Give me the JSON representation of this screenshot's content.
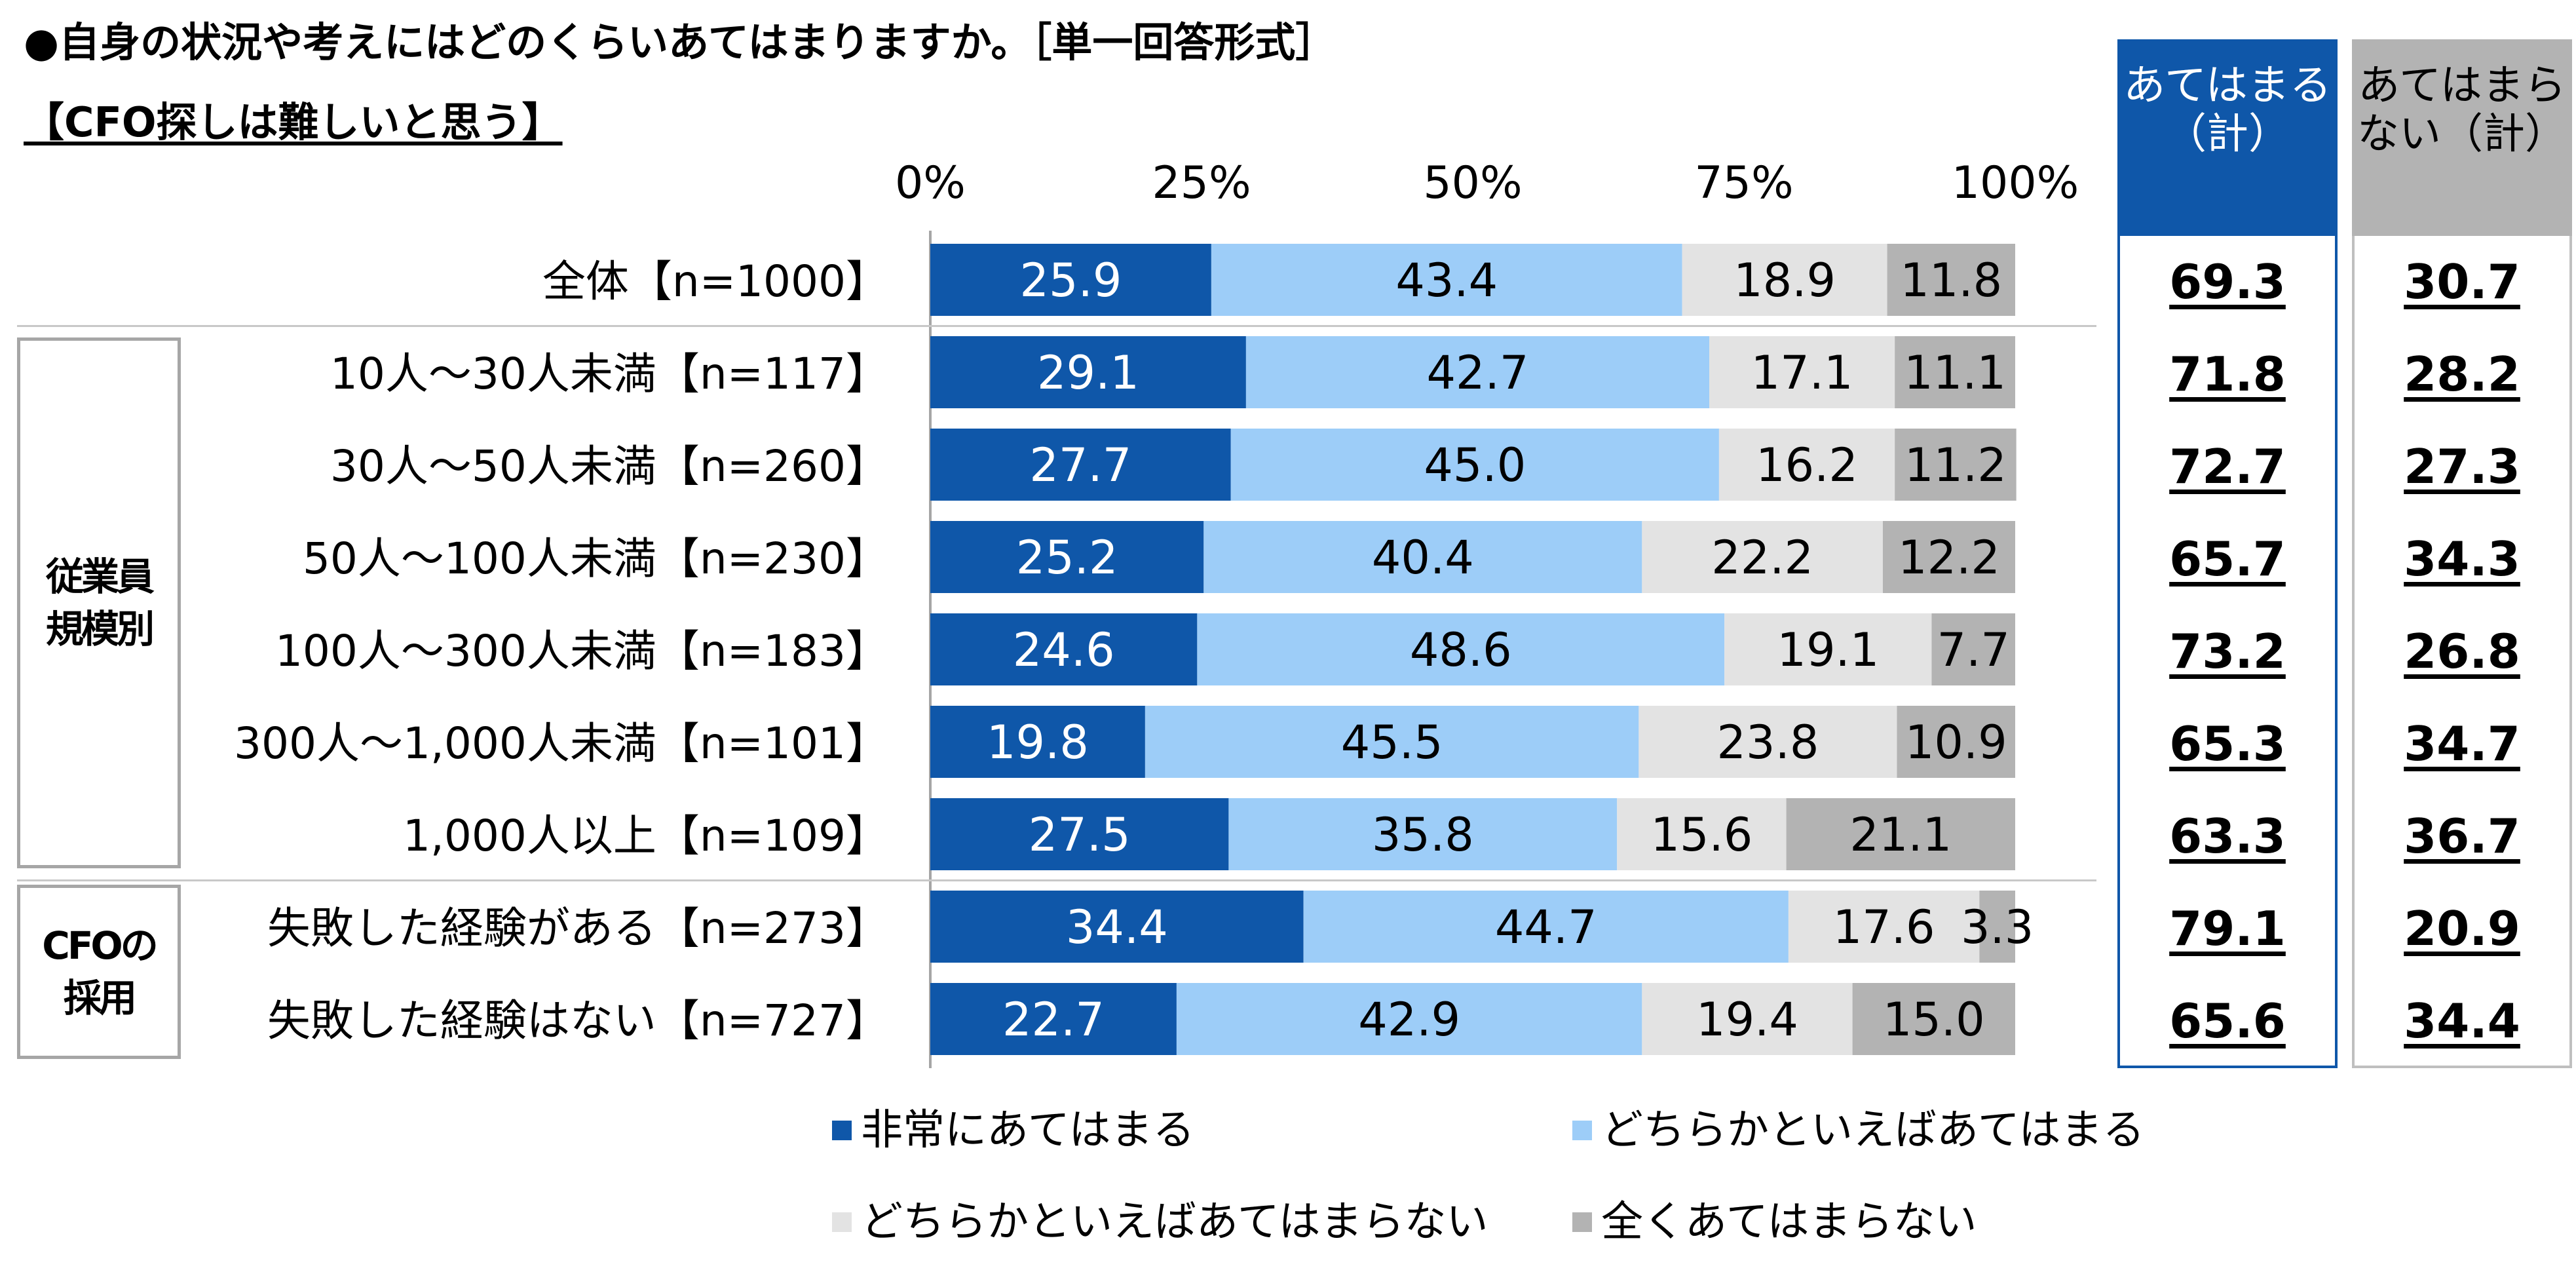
{
  "title": "●自身の状況や考えにはどのくらいあてはまりますか。［単一回答形式］",
  "subtitle": "【CFO探しは難しいと思う】",
  "colors": {
    "very": "#0f57a9",
    "somewhat": "#9dcdf8",
    "somewhat_not": "#e3e3e3",
    "not_at_all": "#b3b3b3",
    "sum_yes_border": "#0f57a9",
    "sum_no_border": "#bfbfbf"
  },
  "groups": [
    {
      "label": "従業員規模別"
    },
    {
      "label": "CFOの採用"
    }
  ],
  "summary_headers": {
    "yes": "あてはまる（計）",
    "no": "あてはまらない（計）"
  },
  "chart_data": {
    "type": "bar",
    "orientation": "horizontal",
    "stacked": true,
    "percent": true,
    "xlim": [
      0,
      100
    ],
    "ticks": [
      "0%",
      "25%",
      "50%",
      "75%",
      "100%"
    ],
    "categories": [
      "全体【n=1000】",
      "10人～30人未満【n=117】",
      "30人～50人未満【n=260】",
      "50人～100人未満【n=230】",
      "100人～300人未満【n=183】",
      "300人～1,000人未満【n=101】",
      "1,000人以上【n=109】",
      "失敗した経験がある【n=273】",
      "失敗した経験はない【n=727】"
    ],
    "series": [
      {
        "name": "非常にあてはまる",
        "values": [
          25.9,
          29.1,
          27.7,
          25.2,
          24.6,
          19.8,
          27.5,
          34.4,
          22.7
        ]
      },
      {
        "name": "どちらかといえばあてはまる",
        "values": [
          43.4,
          42.7,
          45.0,
          40.4,
          48.6,
          45.5,
          35.8,
          44.7,
          42.9
        ]
      },
      {
        "name": "どちらかといえばあてはまらない",
        "values": [
          18.9,
          17.1,
          16.2,
          22.2,
          19.1,
          23.8,
          15.6,
          17.6,
          19.4
        ]
      },
      {
        "name": "全くあてはまらない",
        "values": [
          11.8,
          11.1,
          11.2,
          12.2,
          7.7,
          10.9,
          21.1,
          3.3,
          15.0
        ]
      }
    ],
    "summary_yes": [
      69.3,
      71.8,
      72.7,
      65.7,
      73.2,
      65.3,
      63.3,
      79.1,
      65.6
    ],
    "summary_no": [
      30.7,
      28.2,
      27.3,
      34.3,
      26.8,
      34.7,
      36.7,
      20.9,
      34.4
    ],
    "legend_position": "bottom"
  }
}
